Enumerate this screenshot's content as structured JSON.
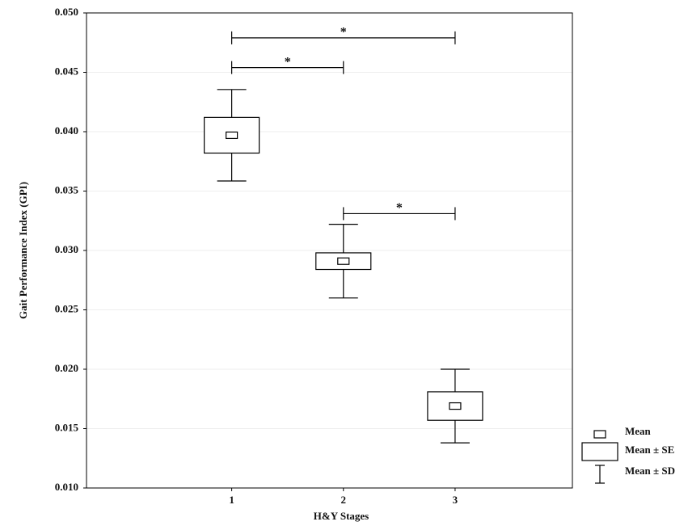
{
  "chart_data": {
    "type": "meanbox",
    "y_label": "Gait Performance Index (GPI)",
    "x_label": "H&Y Stages",
    "x": [
      1,
      2,
      3
    ],
    "mean": [
      0.0397,
      0.0291,
      0.0169
    ],
    "se": [
      0.0015,
      0.0007,
      0.0012
    ],
    "sd": [
      0.00385,
      0.0031,
      0.0031
    ],
    "xlim": [
      -0.3,
      4.05
    ],
    "xticks": [
      1,
      2,
      3
    ],
    "ylim": [
      0.01,
      0.05
    ],
    "yticks": [
      {
        "value": 0.01,
        "label": "0.010"
      },
      {
        "value": 0.015,
        "label": "0.015"
      },
      {
        "value": 0.02,
        "label": "0.020"
      },
      {
        "value": 0.025,
        "label": "0.025"
      },
      {
        "value": 0.03,
        "label": "0.030"
      },
      {
        "value": 0.035,
        "label": "0.035"
      },
      {
        "value": 0.04,
        "label": "0.040"
      },
      {
        "value": 0.045,
        "label": "0.045"
      },
      {
        "value": 0.05,
        "label": "0.050"
      }
    ],
    "grid": true,
    "color": "#000000",
    "significance": [
      {
        "from": 1,
        "to": 3,
        "y": 0.0479,
        "label": "*"
      },
      {
        "from": 1,
        "to": 2,
        "y": 0.0454,
        "label": "*"
      },
      {
        "from": 2,
        "to": 3,
        "y": 0.0331,
        "label": "*"
      }
    ],
    "legend": [
      "Mean",
      "Mean ± SE",
      "Mean ± SD"
    ],
    "legend_position": "lower right outside"
  }
}
